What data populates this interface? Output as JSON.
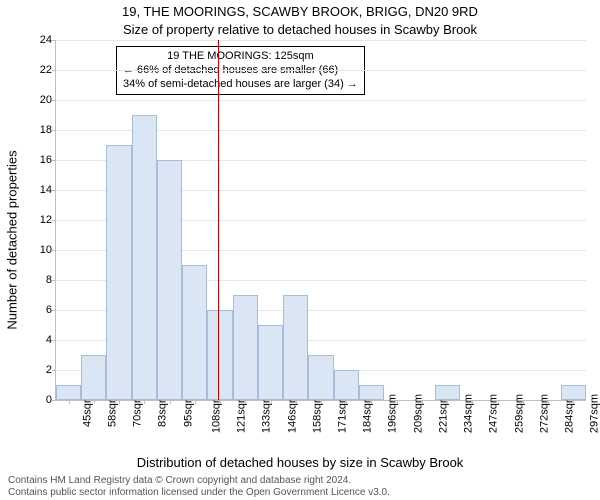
{
  "title_main": "19, THE MOORINGS, SCAWBY BROOK, BRIGG, DN20 9RD",
  "title_sub": "Size of property relative to detached houses in Scawby Brook",
  "ylabel": "Number of detached properties",
  "xlabel": "Distribution of detached houses by size in Scawby Brook",
  "footer1": "Contains HM Land Registry data © Crown copyright and database right 2024.",
  "footer2": "Contains public sector information licensed under the Open Government Licence v3.0.",
  "chart": {
    "type": "histogram",
    "ylim": [
      0,
      24
    ],
    "ytick_step": 2,
    "bar_fill": "#dbe6f4",
    "bar_stroke": "#a7bdd9",
    "grid_color": "#e6e6e6",
    "axis_color": "#bfbfbf",
    "refline_color": "#cc0000",
    "refline_x_label": "125sqm",
    "x_labels": [
      "45sqm",
      "58sqm",
      "70sqm",
      "83sqm",
      "95sqm",
      "108sqm",
      "121sqm",
      "133sqm",
      "146sqm",
      "158sqm",
      "171sqm",
      "184sqm",
      "196sqm",
      "209sqm",
      "221sqm",
      "234sqm",
      "247sqm",
      "259sqm",
      "272sqm",
      "284sqm",
      "297sqm"
    ],
    "values": [
      1,
      3,
      17,
      19,
      16,
      9,
      6,
      7,
      5,
      7,
      3,
      2,
      1,
      0,
      0,
      1,
      0,
      0,
      0,
      0,
      1
    ],
    "annotation": {
      "line1": "19 THE MOORINGS: 125sqm",
      "line2": "← 66% of detached houses are smaller (66)",
      "line3": "34% of semi-detached houses are larger (34) →"
    },
    "title_fontsize": 13,
    "label_fontsize": 13,
    "tick_fontsize": 11,
    "footer_fontsize": 10,
    "footer_color": "#555555",
    "n_bars": 21,
    "refline_index": 6.4
  }
}
